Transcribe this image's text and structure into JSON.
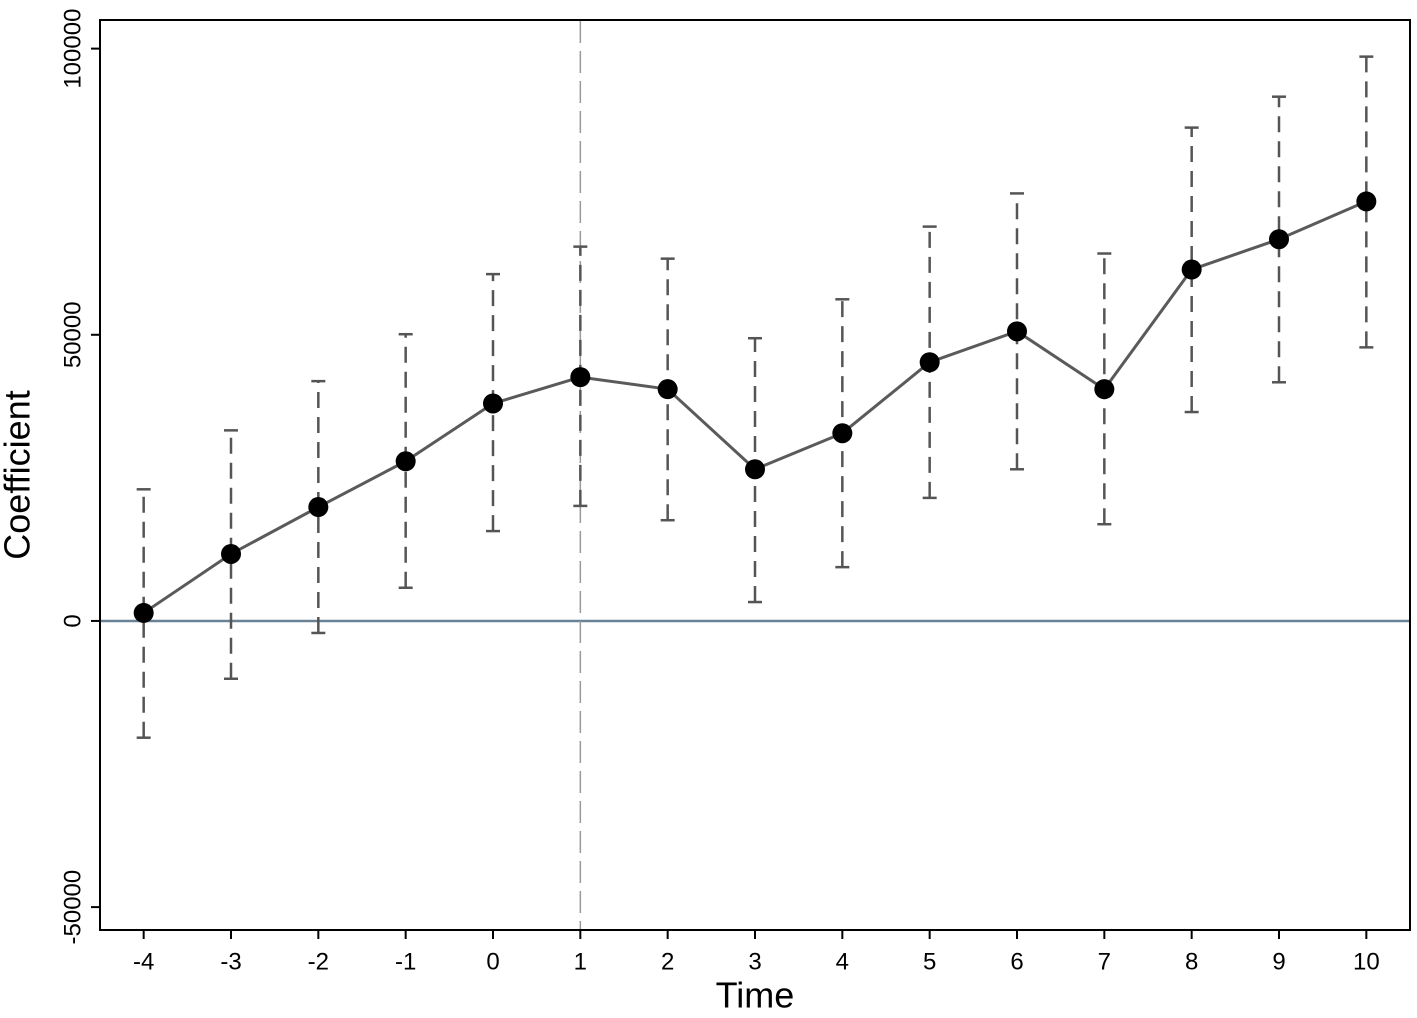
{
  "chart_data": {
    "type": "errorbar_line",
    "x_label": "Time",
    "y_label": "Coefficient",
    "x": [
      -4,
      -3,
      -2,
      -1,
      0,
      1,
      2,
      3,
      4,
      5,
      6,
      7,
      8,
      9,
      10
    ],
    "series": [
      {
        "color": "#5a5a5a",
        "marker_color": "#000000",
        "error_color": "#555555",
        "values": [
          1400,
          11700,
          19900,
          27900,
          38000,
          42600,
          40500,
          26500,
          32800,
          45200,
          50600,
          40500,
          61400,
          66700,
          73300
        ],
        "lower": [
          -20400,
          -10100,
          -2100,
          5800,
          15700,
          20100,
          17600,
          3300,
          9400,
          21500,
          26500,
          16900,
          36500,
          41700,
          47800
        ],
        "upper": [
          23000,
          33300,
          41900,
          50100,
          60600,
          65400,
          63300,
          49400,
          56200,
          68900,
          74700,
          64200,
          86200,
          91600,
          98600
        ]
      }
    ],
    "xlim": [
      -4.5,
      10.5
    ],
    "xticks": [
      -4,
      -3,
      -2,
      -1,
      0,
      1,
      2,
      3,
      4,
      5,
      6,
      7,
      8,
      9,
      10
    ],
    "ylim": [
      -54000,
      105000
    ],
    "yticks": [
      -50000,
      0,
      50000,
      100000
    ],
    "hline": {
      "y": 0,
      "color": "#6a8296"
    },
    "vline": {
      "x": 1,
      "color": "#9a9a9a"
    }
  }
}
